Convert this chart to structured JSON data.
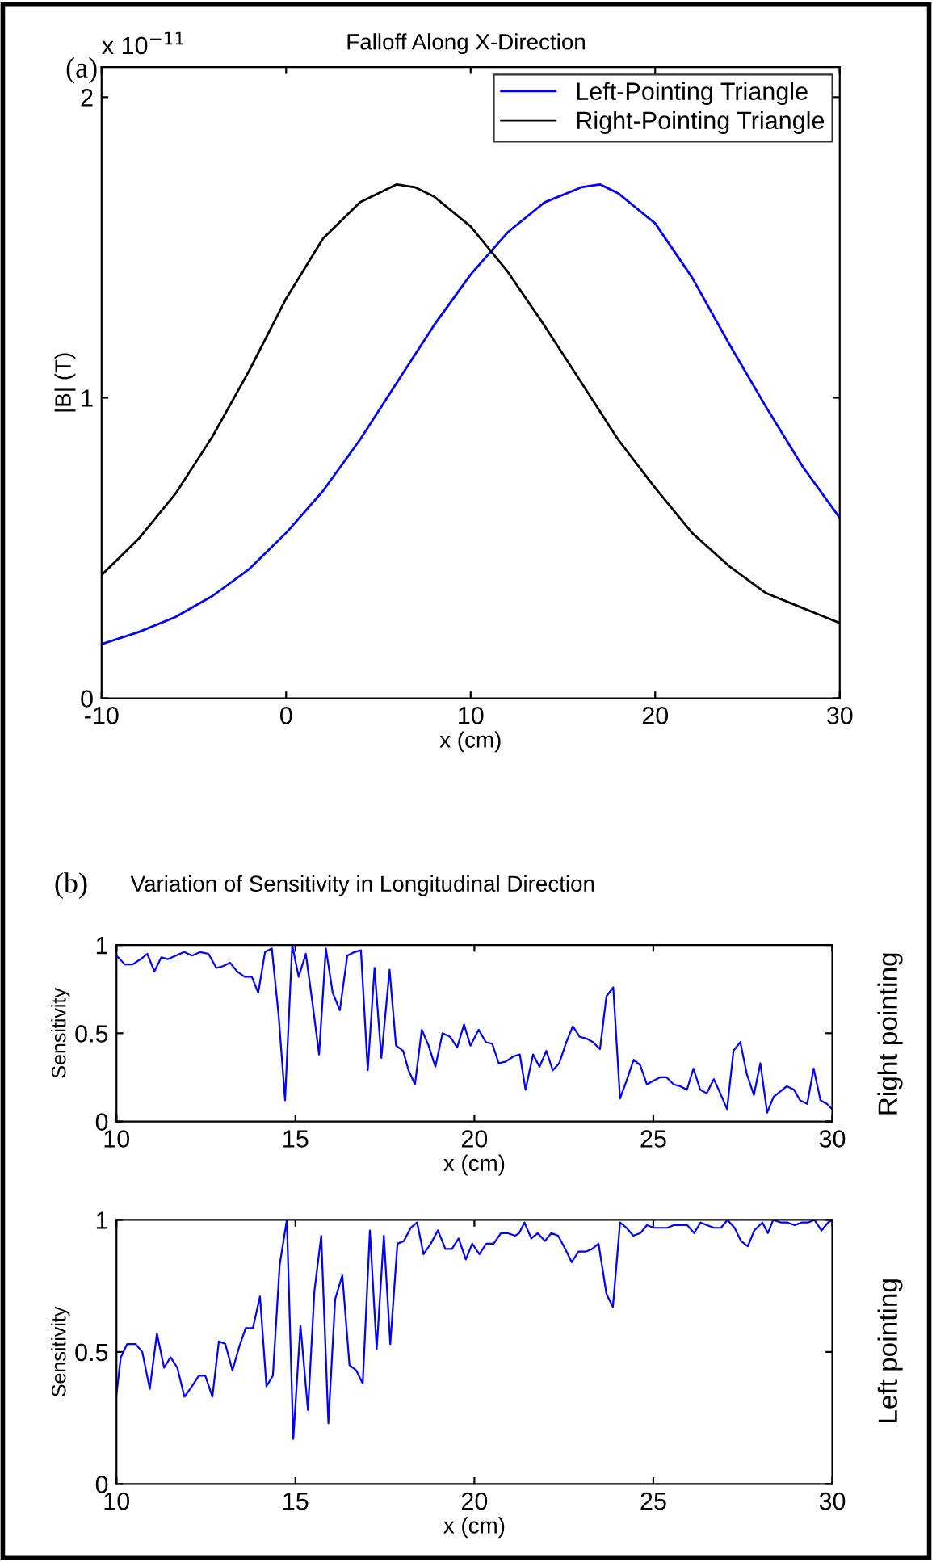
{
  "chart_data": [
    {
      "type": "line",
      "title": "Falloff Along X-Direction",
      "xlabel": "x (cm)",
      "ylabel": "|B| (T)",
      "annotations": [
        "(a)",
        "x 10$^{−11}$"
      ],
      "xlim": [
        -10,
        30
      ],
      "xticks": [
        -10,
        0,
        10,
        20,
        30
      ],
      "ylim": [
        0,
        2.1
      ],
      "yticks": [
        0,
        1,
        2
      ],
      "grid": false,
      "legend": "top right",
      "line_style": "solid",
      "marker": "none",
      "series": [
        {
          "name": "Left-Pointing Triangle",
          "color": "#0000ff",
          "x": [
            -10,
            -8,
            -6,
            -4,
            -2,
            0,
            2,
            4,
            6,
            8,
            10,
            12,
            14,
            16,
            17,
            18,
            20,
            22,
            24,
            26,
            28,
            30
          ],
          "values": [
            0.18,
            0.22,
            0.27,
            0.34,
            0.43,
            0.55,
            0.69,
            0.86,
            1.05,
            1.24,
            1.41,
            1.55,
            1.65,
            1.7,
            1.71,
            1.68,
            1.58,
            1.4,
            1.18,
            0.97,
            0.77,
            0.6
          ]
        },
        {
          "name": "Right-Pointing Triangle",
          "color": "#000000",
          "x": [
            -10,
            -8,
            -6,
            -4,
            -2,
            0,
            2,
            4,
            6,
            7,
            8,
            10,
            12,
            14,
            16,
            18,
            20,
            22,
            24,
            26,
            28,
            30
          ],
          "values": [
            0.41,
            0.53,
            0.68,
            0.87,
            1.09,
            1.33,
            1.53,
            1.65,
            1.71,
            1.7,
            1.67,
            1.57,
            1.42,
            1.24,
            1.05,
            0.86,
            0.7,
            0.55,
            0.44,
            0.35,
            0.3,
            0.25
          ]
        }
      ]
    },
    {
      "type": "line",
      "title": "Variation of Sensitivity in Longitudinal Direction",
      "xlabel": "x (cm)",
      "ylabel": "Sensitivity",
      "annotations": [
        "(b)",
        "Right pointing"
      ],
      "xlim": [
        10,
        30
      ],
      "xticks": [
        10,
        15,
        20,
        25,
        30
      ],
      "ylim": [
        0,
        1
      ],
      "yticks": [
        0,
        0.5,
        1
      ],
      "grid": false,
      "legend": false,
      "line_style": "solid",
      "marker": "none",
      "series": [
        {
          "color": "#0000ff",
          "x": [
            10.0,
            10.23,
            10.45,
            10.68,
            10.86,
            11.06,
            11.25,
            11.44,
            11.66,
            11.89,
            12.11,
            12.34,
            12.57,
            12.79,
            12.98,
            13.17,
            13.37,
            13.58,
            13.78,
            13.96,
            14.15,
            14.34,
            14.53,
            14.71,
            14.91,
            15.09,
            15.29,
            15.47,
            15.66,
            15.85,
            16.04,
            16.24,
            16.45,
            16.65,
            16.83,
            17.02,
            17.21,
            17.4,
            17.63,
            17.81,
            18.01,
            18.16,
            18.34,
            18.53,
            18.72,
            18.91,
            19.11,
            19.32,
            19.52,
            19.71,
            19.89,
            20.12,
            20.32,
            20.5,
            20.68,
            20.88,
            21.1,
            21.27,
            21.43,
            21.64,
            21.82,
            22.01,
            22.19,
            22.37,
            22.57,
            22.75,
            22.94,
            23.13,
            23.31,
            23.51,
            23.69,
            23.88,
            24.07,
            24.25,
            24.45,
            24.63,
            24.82,
            25.0,
            25.19,
            25.37,
            25.57,
            25.75,
            25.94,
            26.12,
            26.31,
            26.49,
            26.69,
            26.87,
            27.06,
            27.24,
            27.43,
            27.61,
            27.81,
            27.99,
            28.18,
            28.36,
            28.55,
            28.73,
            28.93,
            29.1,
            29.3,
            29.48,
            29.67,
            29.85,
            30.0
          ],
          "values": [
            0.94,
            0.89,
            0.89,
            0.92,
            0.95,
            0.85,
            0.93,
            0.92,
            0.94,
            0.96,
            0.94,
            0.96,
            0.95,
            0.87,
            0.88,
            0.9,
            0.85,
            0.82,
            0.82,
            0.73,
            0.96,
            0.98,
            0.6,
            0.12,
            1.0,
            0.82,
            0.95,
            0.68,
            0.38,
            0.98,
            0.73,
            0.63,
            0.94,
            0.96,
            0.97,
            0.29,
            0.87,
            0.36,
            0.86,
            0.43,
            0.4,
            0.29,
            0.21,
            0.52,
            0.43,
            0.31,
            0.5,
            0.48,
            0.42,
            0.55,
            0.43,
            0.52,
            0.45,
            0.44,
            0.33,
            0.34,
            0.37,
            0.38,
            0.18,
            0.38,
            0.31,
            0.4,
            0.29,
            0.33,
            0.45,
            0.54,
            0.48,
            0.47,
            0.45,
            0.41,
            0.71,
            0.76,
            0.13,
            0.23,
            0.35,
            0.32,
            0.21,
            0.23,
            0.25,
            0.25,
            0.21,
            0.2,
            0.18,
            0.3,
            0.18,
            0.16,
            0.24,
            0.16,
            0.07,
            0.4,
            0.45,
            0.27,
            0.15,
            0.33,
            0.05,
            0.14,
            0.17,
            0.2,
            0.18,
            0.12,
            0.1,
            0.3,
            0.12,
            0.1,
            0.07
          ]
        }
      ]
    },
    {
      "type": "line",
      "xlabel": "x (cm)",
      "ylabel": "Sensitivity",
      "annotations": [
        "Left pointing"
      ],
      "xlim": [
        10,
        30
      ],
      "xticks": [
        10,
        15,
        20,
        25,
        30
      ],
      "ylim": [
        0,
        1
      ],
      "yticks": [
        0,
        0.5,
        1
      ],
      "grid": false,
      "legend": false,
      "line_style": "solid",
      "marker": "none",
      "series": [
        {
          "color": "#0000ff",
          "x": [
            10.0,
            10.12,
            10.3,
            10.53,
            10.72,
            10.93,
            11.13,
            11.33,
            11.51,
            11.7,
            11.9,
            12.11,
            12.3,
            12.48,
            12.68,
            12.86,
            13.04,
            13.24,
            13.43,
            13.61,
            13.81,
            14.01,
            14.19,
            14.37,
            14.56,
            14.76,
            14.94,
            15.14,
            15.35,
            15.53,
            15.72,
            15.92,
            16.11,
            16.31,
            16.51,
            16.7,
            16.88,
            17.08,
            17.27,
            17.47,
            17.65,
            17.85,
            18.03,
            18.22,
            18.4,
            18.58,
            18.78,
            18.98,
            19.19,
            19.37,
            19.56,
            19.76,
            19.94,
            20.14,
            20.33,
            20.54,
            20.74,
            20.92,
            21.14,
            21.25,
            21.4,
            21.59,
            21.77,
            21.97,
            22.15,
            22.34,
            22.54,
            22.72,
            22.91,
            23.11,
            23.29,
            23.47,
            23.69,
            23.87,
            24.07,
            24.25,
            24.44,
            24.64,
            24.82,
            25.02,
            25.2,
            25.39,
            25.57,
            25.75,
            25.95,
            26.14,
            26.32,
            26.5,
            26.7,
            26.89,
            27.07,
            27.27,
            27.45,
            27.64,
            27.82,
            28.05,
            28.2,
            28.35,
            28.57,
            28.75,
            28.95,
            29.14,
            29.32,
            29.5,
            29.7,
            29.88,
            30.0
          ],
          "values": [
            0.34,
            0.48,
            0.53,
            0.53,
            0.5,
            0.36,
            0.57,
            0.44,
            0.48,
            0.44,
            0.33,
            0.37,
            0.41,
            0.41,
            0.33,
            0.54,
            0.53,
            0.43,
            0.52,
            0.59,
            0.59,
            0.71,
            0.37,
            0.41,
            0.83,
            1.0,
            0.17,
            0.6,
            0.28,
            0.73,
            0.94,
            0.23,
            0.7,
            0.79,
            0.45,
            0.43,
            0.38,
            0.96,
            0.51,
            0.94,
            0.53,
            0.91,
            0.92,
            0.97,
            0.99,
            0.87,
            0.91,
            0.96,
            0.89,
            0.89,
            0.93,
            0.85,
            0.91,
            0.87,
            0.91,
            0.91,
            0.95,
            0.95,
            0.94,
            0.95,
            0.99,
            0.93,
            0.95,
            0.92,
            0.95,
            0.94,
            0.89,
            0.84,
            0.88,
            0.88,
            0.89,
            0.91,
            0.72,
            0.67,
            0.99,
            0.97,
            0.94,
            0.95,
            0.98,
            0.97,
            0.97,
            0.97,
            0.98,
            0.98,
            0.98,
            0.95,
            0.99,
            0.98,
            0.97,
            0.97,
            1.0,
            0.97,
            0.92,
            0.9,
            0.96,
            0.99,
            0.95,
            1.0,
            0.99,
            0.99,
            0.98,
            0.99,
            0.99,
            1.0,
            0.96,
            0.99,
            1.0
          ]
        }
      ]
    }
  ]
}
